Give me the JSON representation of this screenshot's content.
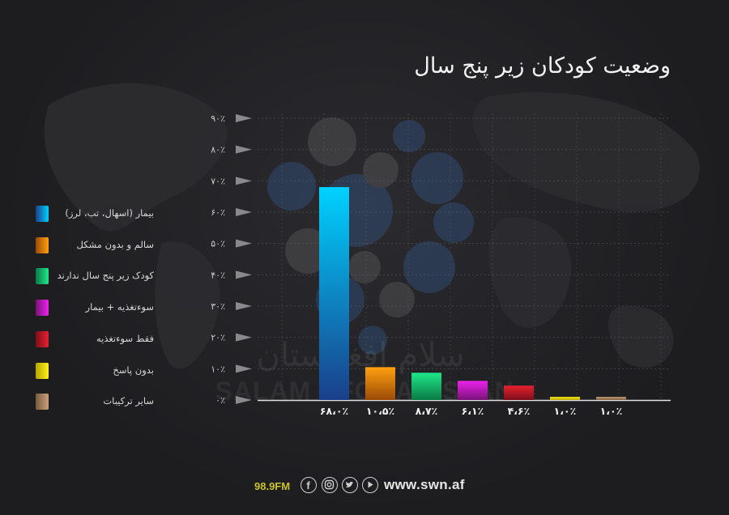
{
  "chart_data": {
    "type": "bar",
    "title": "وضعیت کودکان زیر پنج سال",
    "categories": [
      "بیمار (اسهال، تب، لرز)",
      "سالم و بدون مشکل",
      "کودک زیر پنج سال ندارند",
      "سوءتغذیه + بیمار",
      "فقط سوءتغذیه",
      "بدون پاسخ",
      "سایر ترکیبات"
    ],
    "values": [
      68.0,
      10.5,
      8.7,
      6.1,
      4.6,
      1.0,
      1.0
    ],
    "value_labels": [
      "۶۸،۰٪",
      "۱۰،۵٪",
      "۸،۷٪",
      "۶،۱٪",
      "۴،۶٪",
      "۱،۰٪",
      "۱،۰٪"
    ],
    "y_ticks": [
      "۰٪",
      "۱۰٪",
      "۲۰٪",
      "۳۰٪",
      "۴۰٪",
      "۵۰٪",
      "۶۰٪",
      "۷۰٪",
      "۸۰٪",
      "۹۰٪"
    ],
    "ylim": [
      0,
      90
    ],
    "grid": true,
    "legend_position": "left",
    "colors": [
      {
        "top": "#00d2ff",
        "bottom": "#1a3f8a"
      },
      {
        "top": "#ffa00f",
        "bottom": "#9a4a08"
      },
      {
        "top": "#1ee88a",
        "bottom": "#0a7a45"
      },
      {
        "top": "#ee22ee",
        "bottom": "#771277"
      },
      {
        "top": "#e8202f",
        "bottom": "#7a0f18"
      },
      {
        "top": "#fff21c",
        "bottom": "#b8a200"
      },
      {
        "top": "#c9a07a",
        "bottom": "#7a5a3e"
      }
    ]
  },
  "background_watermark": {
    "text_fa": "سلام افغانستان",
    "text_en": "SALAM AFGHANISTAN"
  },
  "footer": {
    "frequency": "98.9FM",
    "website": "www.swn.af",
    "icons": [
      "facebook-icon",
      "instagram-icon",
      "twitter-icon",
      "play-icon"
    ]
  }
}
